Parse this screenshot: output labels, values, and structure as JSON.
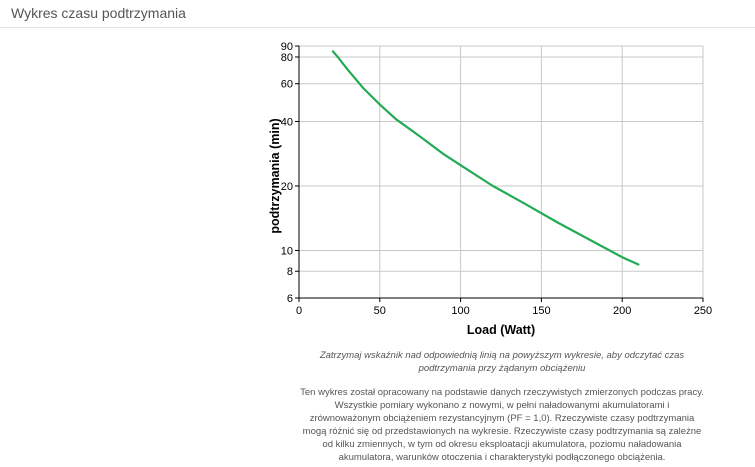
{
  "panel": {
    "title": "Wykres czasu podtrzymania"
  },
  "chart_data": {
    "type": "line",
    "xlabel": "Load (Watt)",
    "ylabel": "podtrzymania (min)",
    "x_scale": "linear",
    "y_scale": "log",
    "xlim": [
      0,
      250
    ],
    "ylim": [
      6,
      90
    ],
    "x_ticks": [
      0,
      50,
      100,
      150,
      200,
      250
    ],
    "y_ticks": [
      6,
      8,
      10,
      20,
      40,
      60,
      80,
      90
    ],
    "grid": true,
    "series": [
      {
        "color": "#22aa55",
        "x": [
          21,
          24,
          30,
          40,
          50,
          60,
          75,
          90,
          100,
          120,
          140,
          160,
          180,
          200,
          210
        ],
        "y": [
          85,
          80,
          70,
          57,
          48,
          41,
          34,
          28,
          25,
          20,
          16.5,
          13.5,
          11.2,
          9.3,
          8.6
        ]
      }
    ]
  },
  "hint_lines": [
    "Zatrzymaj wskaźnik nad odpowiednią linią na powyższym wykresie, aby odczytać czas",
    "podtrzymania przy żądanym obciążeniu"
  ],
  "description_lines": [
    "Ten wykres został opracowany na podstawie danych rzeczywistych zmierzonych podczas pracy.",
    "Wszystkie pomiary wykonano z nowymi, w pełni naładowanymi akumulatorami i",
    "zrównoważonym obciążeniem rezystancyjnym (PF = 1,0). Rzeczywiste czasy podtrzymania",
    "mogą różnić się od przedstawionych na wykresie. Rzeczywiste czasy podtrzymania są zależne",
    "od kilku zmiennych, w tym od okresu eksploatacji akumulatora, poziomu naładowania",
    "akumulatora, warunków otoczenia i charakterystyki podłączonego obciążenia."
  ]
}
